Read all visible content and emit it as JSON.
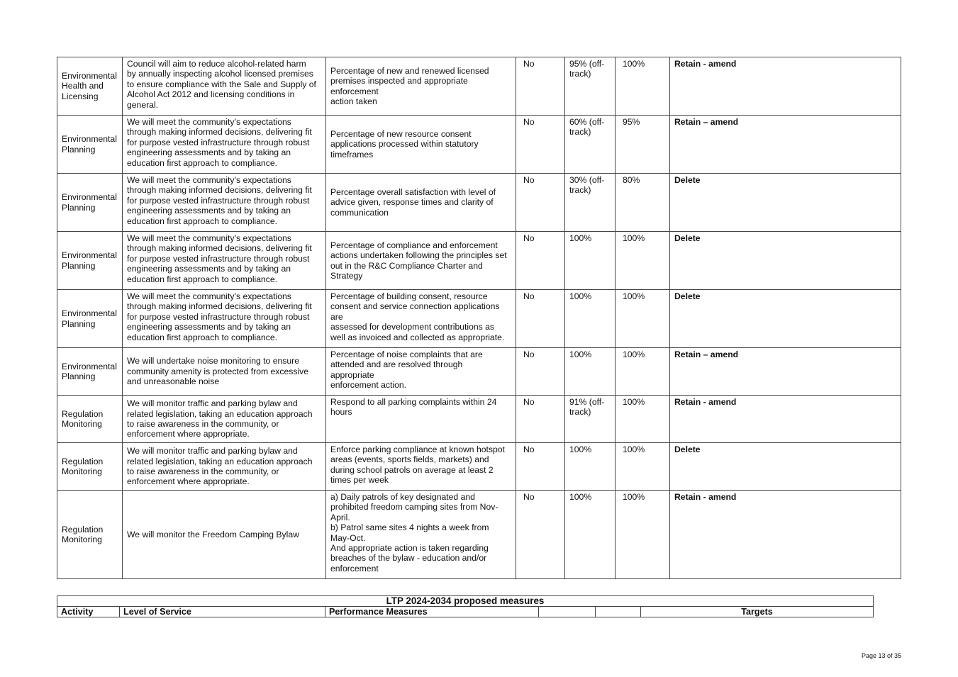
{
  "rows": [
    {
      "activity": "Environmental\nHealth and\nLicensing",
      "level": "Council will aim to reduce alcohol-related harm\nby annually inspecting alcohol licensed premises\nto ensure compliance with the Sale and Supply of\nAlcohol Act 2012 and licensing conditions in\ngeneral.",
      "measure": "Percentage of new and renewed licensed\npremises inspected and appropriate\nenforcement\naction taken",
      "yn": "No",
      "result": "95% (off-\ntrack)",
      "target": "100%",
      "action": "Retain - amend"
    },
    {
      "activity": "Environmental\nPlanning",
      "level": "We will meet the community’s expectations\nthrough making informed decisions, delivering fit\nfor purpose vested infrastructure through robust\nengineering assessments and by taking an\neducation first approach to compliance.",
      "measure": "Percentage of new resource consent\napplications processed within statutory\ntimeframes",
      "yn": "No",
      "result": "60% (off-\ntrack)",
      "target": "95%",
      "action": "Retain – amend"
    },
    {
      "activity": "Environmental\nPlanning",
      "level": "We will meet the community’s expectations\nthrough making informed decisions, delivering fit\nfor purpose vested infrastructure through robust\nengineering assessments and by taking an\neducation first approach to compliance.",
      "measure": "Percentage overall satisfaction with level of\nadvice given, response times and clarity of\ncommunication",
      "yn": "No",
      "result": "30% (off-\ntrack)",
      "target": "80%",
      "action": "Delete"
    },
    {
      "activity": "Environmental\nPlanning",
      "level": "We will meet the community’s expectations\nthrough making informed decisions, delivering fit\nfor purpose vested infrastructure through robust\nengineering assessments and by taking an\neducation first approach to compliance.",
      "measure": "Percentage of compliance and enforcement\nactions undertaken following the principles set\nout in the R&C Compliance Charter and\nStrategy",
      "yn": "No",
      "result": "100%",
      "target": "100%",
      "action": "Delete"
    },
    {
      "activity": "Environmental\nPlanning",
      "level": "We will meet the community’s expectations\nthrough making informed decisions, delivering fit\nfor purpose vested infrastructure through robust\nengineering assessments and by taking an\neducation first approach to compliance.",
      "measure": "Percentage of building consent, resource\nconsent and service connection applications\nare\nassessed for development contributions as\nwell as invoiced and collected as appropriate.",
      "yn": "No",
      "result": "100%",
      "target": "100%",
      "action": "Delete"
    },
    {
      "activity": "Environmental\nPlanning",
      "level": "We will undertake noise monitoring to ensure\ncommunity amenity is protected from excessive\nand unreasonable noise",
      "measure": "Percentage of noise complaints that are\nattended and are resolved through\nappropriate\nenforcement action.",
      "yn": "No",
      "result": "100%",
      "target": "100%",
      "action": "Retain – amend"
    },
    {
      "activity": "Regulation\nMonitoring",
      "level": "We will monitor traffic and parking bylaw and\nrelated legislation, taking an education approach\nto raise awareness in the community, or\nenforcement where appropriate.",
      "measure": "Respond to all parking complaints within 24\nhours",
      "yn": "No",
      "result": "91% (off-\ntrack)",
      "target": "100%",
      "action": "Retain - amend"
    },
    {
      "activity": "Regulation\nMonitoring",
      "level": "We will monitor traffic and parking bylaw and\nrelated legislation, taking an education approach\nto raise awareness in the community, or\nenforcement where appropriate.",
      "measure": "Enforce parking compliance at known hotspot\nareas (events, sports fields, markets) and\nduring school patrols on average at least 2\ntimes per week",
      "yn": "No",
      "result": "100%",
      "target": "100%",
      "action": "Delete"
    },
    {
      "activity": "Regulation\nMonitoring",
      "level": "We will monitor the Freedom Camping Bylaw",
      "measure": "a) Daily patrols of key designated and\nprohibited freedom camping sites from Nov-\nApril.\nb) Patrol same sites 4 nights a week from\nMay-Oct.\nAnd appropriate action is taken regarding\nbreaches of the bylaw - education and/or\nenforcement",
      "yn": "No",
      "result": "100%",
      "target": "100%",
      "action": "Retain - amend"
    }
  ],
  "ltp": {
    "title": "LTP 2024-2034 proposed measures",
    "headers": {
      "activity": "Activity",
      "level": "Level of Service",
      "measure": "Performance Measures",
      "targets": "Targets"
    }
  },
  "footer": {
    "page": "Page 13 of 35"
  }
}
